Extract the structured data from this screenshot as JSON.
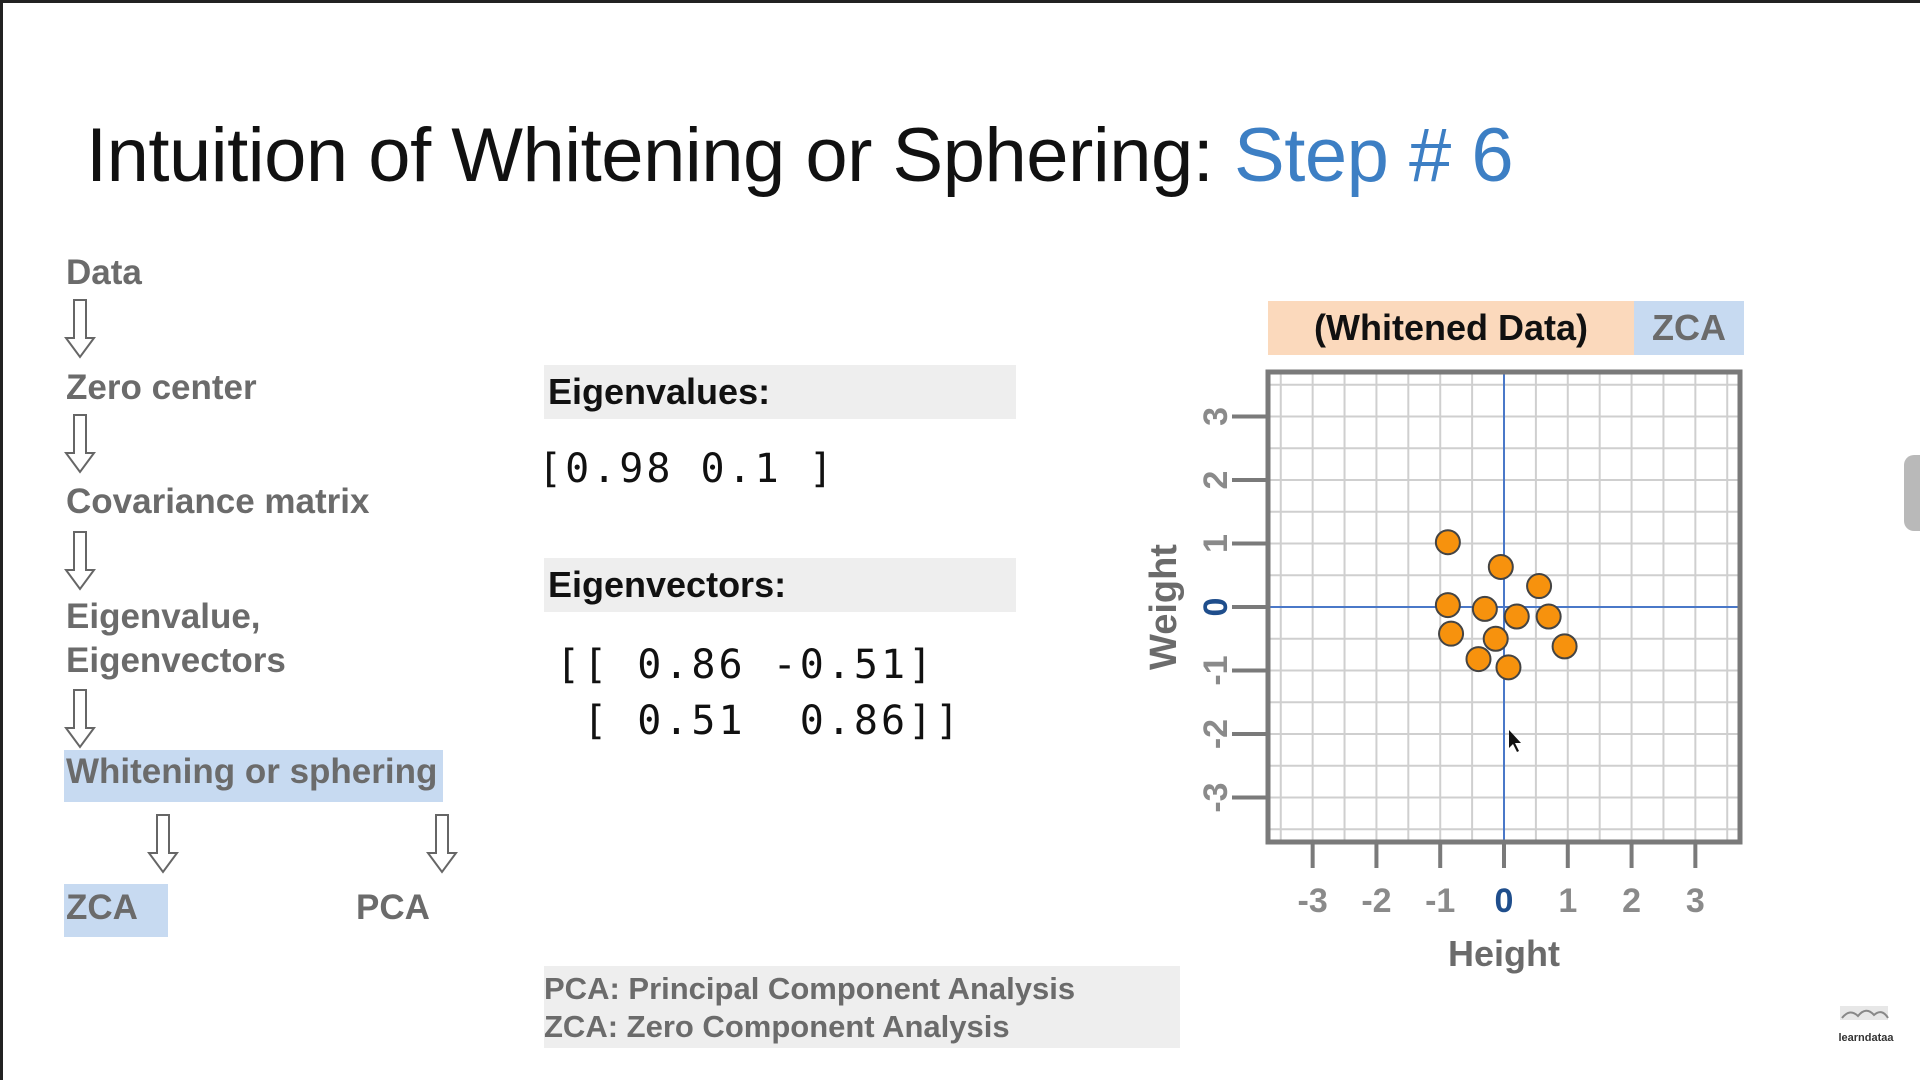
{
  "slide": {
    "title_main": "Intuition of Whitening or Sphering: ",
    "title_accent": "Step # 6"
  },
  "flow": {
    "data": "Data",
    "zero_center": "Zero center",
    "covariance": "Covariance matrix",
    "eigen_line1": "Eigenvalue,",
    "eigen_line2": "Eigenvectors",
    "whitening": "Whitening or sphering",
    "zca": "ZCA",
    "pca": "PCA"
  },
  "eigen": {
    "values_label": "Eigenvalues:",
    "values": "[0.98 0.1 ]",
    "vectors_label": "Eigenvectors:",
    "vectors_row1": "[[ 0.86 -0.51]",
    "vectors_row2": " [ 0.51  0.86]]"
  },
  "footnote": {
    "pca": "PCA: Principal Component Analysis",
    "zca": "ZCA: Zero Component Analysis"
  },
  "chart_header": {
    "left": "(Whitened Data)",
    "right": "ZCA"
  },
  "logo_text": "learndataa",
  "colors": {
    "accent": "#3d7fc4",
    "point_fill": "#f7920d",
    "axis_zero": "#4a78c8",
    "zero_tick": "#1f4e8c",
    "highlight": "#c7daf1",
    "peach": "#fbd9bc"
  },
  "chart_data": {
    "type": "scatter",
    "title": "(Whitened Data) ZCA",
    "xlabel": "Height",
    "ylabel": "Weight",
    "xlim": [
      -3.7,
      3.7
    ],
    "ylim": [
      -3.7,
      3.7
    ],
    "xticks": [
      -3,
      -2,
      -1,
      0,
      1,
      2,
      3
    ],
    "yticks": [
      -3,
      -2,
      -1,
      0,
      1,
      2,
      3
    ],
    "xtick_labels": [
      "-3",
      "-2",
      "-1",
      "0",
      "1",
      "2",
      "3"
    ],
    "ytick_labels": [
      "-3",
      "-2",
      "-1",
      "0",
      "1",
      "2",
      "3"
    ],
    "grid": true,
    "points": {
      "x": [
        -0.88,
        -0.05,
        0.55,
        -0.88,
        -0.3,
        0.2,
        0.7,
        -0.83,
        -0.13,
        0.95,
        -0.4,
        0.07
      ],
      "y": [
        1.02,
        0.63,
        0.33,
        0.03,
        -0.03,
        -0.15,
        -0.15,
        -0.42,
        -0.5,
        -0.62,
        -0.82,
        -0.95
      ]
    }
  }
}
